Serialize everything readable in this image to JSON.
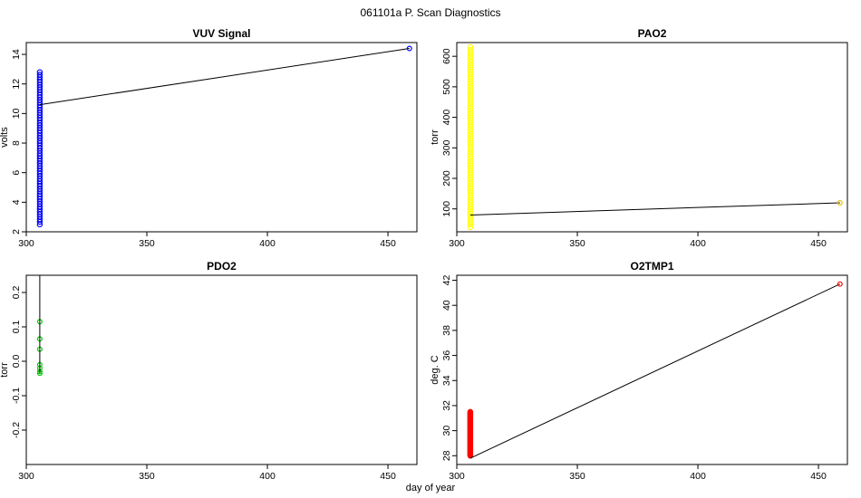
{
  "page_title": "061101a   P. Scan Diagnostics",
  "shared_xlabel": "day of year",
  "chart_data": [
    {
      "type": "scatter",
      "title": "VUV Signal",
      "xlabel": "",
      "ylabel": "volts",
      "xlim": [
        300,
        462
      ],
      "ylim": [
        2,
        14.8
      ],
      "x_ticks": [
        300,
        350,
        400,
        450
      ],
      "y_ticks": [
        2,
        4,
        6,
        8,
        10,
        12,
        14
      ],
      "point_color": "#0000ff",
      "cluster": {
        "x": 305.6,
        "y_min": 2.5,
        "y_max": 12.8
      },
      "outlier": {
        "x": 458.9,
        "y": 14.4
      },
      "line": {
        "x": [
          305.6,
          458.9
        ],
        "y": [
          10.6,
          14.4
        ],
        "color": "#000000"
      },
      "vline": null
    },
    {
      "type": "scatter",
      "title": "PAO2",
      "xlabel": "",
      "ylabel": "torr",
      "xlim": [
        300,
        462
      ],
      "ylim": [
        25,
        645
      ],
      "x_ticks": [
        300,
        350,
        400,
        450
      ],
      "y_ticks": [
        100,
        200,
        300,
        400,
        500,
        600
      ],
      "point_color": "#ffff00",
      "cluster": {
        "x": 305.6,
        "y_min": 40,
        "y_max": 630
      },
      "outlier": {
        "x": 458.9,
        "y": 120
      },
      "line": {
        "x": [
          305.6,
          458.9
        ],
        "y": [
          80,
          120
        ],
        "color": "#000000"
      },
      "vline": null
    },
    {
      "type": "scatter",
      "title": "PDO2",
      "xlabel": "",
      "ylabel": "torr",
      "xlim": [
        300,
        462
      ],
      "ylim": [
        -0.3,
        0.25
      ],
      "x_ticks": [
        300,
        350,
        400,
        450
      ],
      "y_ticks": [
        -0.2,
        -0.1,
        0.0,
        0.1,
        0.2
      ],
      "point_color": "#00cc00",
      "points": [
        {
          "x": 305.6,
          "y": 0.115
        },
        {
          "x": 305.6,
          "y": 0.065
        },
        {
          "x": 305.6,
          "y": 0.035
        },
        {
          "x": 305.6,
          "y": -0.01
        },
        {
          "x": 305.6,
          "y": -0.02
        },
        {
          "x": 305.6,
          "y": -0.03
        },
        {
          "x": 305.6,
          "y": -0.035
        }
      ],
      "cluster": null,
      "outlier": null,
      "line": null,
      "vline": {
        "x": 305.6,
        "y_from": -0.035,
        "y_to": 0.25,
        "color": "#000000"
      }
    },
    {
      "type": "scatter",
      "title": "O2TMP1",
      "xlabel": "",
      "ylabel": "deg. C",
      "xlim": [
        300,
        462
      ],
      "ylim": [
        27.3,
        42.4
      ],
      "x_ticks": [
        300,
        350,
        400,
        450
      ],
      "y_ticks": [
        28,
        30,
        32,
        34,
        36,
        38,
        40,
        42
      ],
      "point_color": "#ff0000",
      "cluster": {
        "x": 305.6,
        "y_min": 28.0,
        "y_max": 31.5
      },
      "outlier": {
        "x": 458.9,
        "y": 41.7
      },
      "line": {
        "x": [
          305.6,
          458.9
        ],
        "y": [
          27.8,
          41.7
        ],
        "color": "#000000"
      },
      "vline": null
    }
  ]
}
